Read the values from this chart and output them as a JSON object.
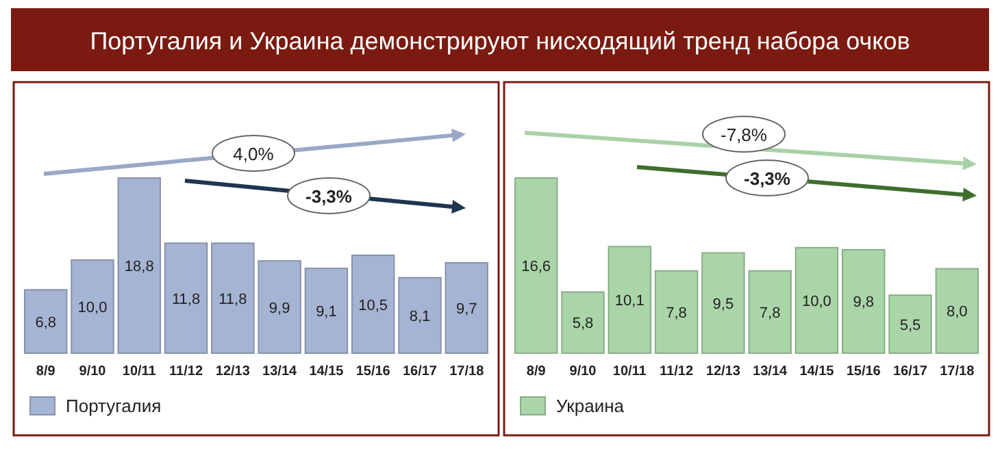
{
  "chart_data": [
    {
      "type": "bar",
      "title": "Португалия и Украина демонстрируют нисходящий тренд набора очков",
      "categories": [
        "8/9",
        "9/10",
        "10/11",
        "11/12",
        "12/13",
        "13/14",
        "14/15",
        "15/16",
        "16/17",
        "17/18"
      ],
      "series": [
        {
          "name": "Португалия",
          "color": "#a6b4d3",
          "values": [
            6.8,
            10.0,
            18.8,
            11.8,
            11.8,
            9.9,
            9.1,
            10.5,
            8.1,
            9.7
          ],
          "value_labels": [
            "6,8",
            "10,0",
            "18,8",
            "11,8",
            "11,8",
            "9,9",
            "9,1",
            "10,5",
            "8,1",
            "9,7"
          ]
        }
      ],
      "legend": "bottom left",
      "annotations": [
        "4,0%",
        "-3,3%"
      ]
    },
    {
      "type": "bar",
      "categories": [
        "8/9",
        "9/10",
        "10/11",
        "11/12",
        "12/13",
        "13/14",
        "14/15",
        "15/16",
        "16/17",
        "17/18"
      ],
      "series": [
        {
          "name": "Украина",
          "color": "#aad5a8",
          "values": [
            16.6,
            5.8,
            10.1,
            7.8,
            9.5,
            7.8,
            10.0,
            9.8,
            5.5,
            8.0
          ],
          "value_labels": [
            "16,6",
            "5,8",
            "10,1",
            "7,8",
            "9,5",
            "7,8",
            "10,0",
            "9,8",
            "5,5",
            "8,0"
          ]
        }
      ],
      "legend": "bottom left",
      "annotations": [
        "-7,8%",
        "-3,3%"
      ]
    }
  ]
}
